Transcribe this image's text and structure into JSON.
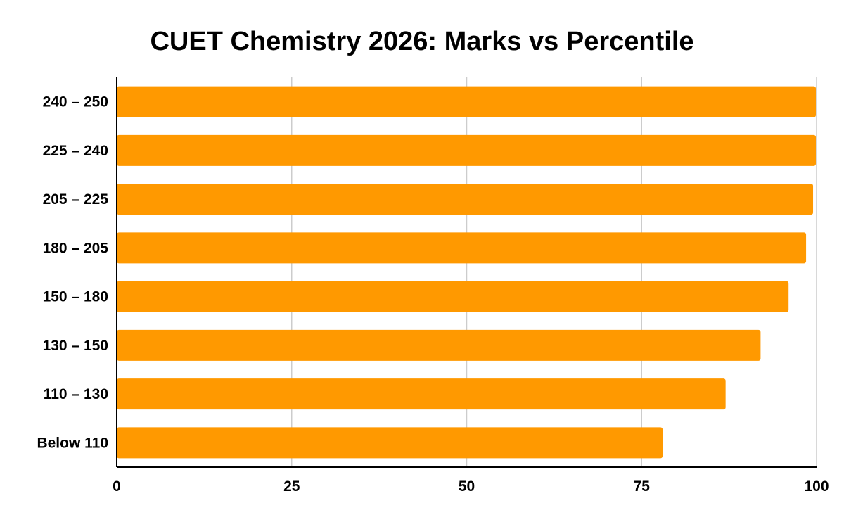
{
  "chart_data": {
    "type": "bar",
    "orientation": "horizontal",
    "title": "CUET Chemistry 2026: Marks vs Percentile",
    "xlabel": "",
    "ylabel": "",
    "categories": [
      "240 – 250",
      "225 – 240",
      "205 – 225",
      "180 – 205",
      "150 – 180",
      "130 – 150",
      "110 – 130",
      "Below 110"
    ],
    "values": [
      99.9,
      99.9,
      99.5,
      98.5,
      96,
      92,
      87,
      78
    ],
    "xlim": [
      0,
      100
    ],
    "xticks": [
      "0",
      "25",
      "50",
      "75",
      "100"
    ],
    "grid": "vertical",
    "legend": "none",
    "bar_color": "#ff9900",
    "grid_color": "#cccccc",
    "axis_color": "#000000"
  }
}
